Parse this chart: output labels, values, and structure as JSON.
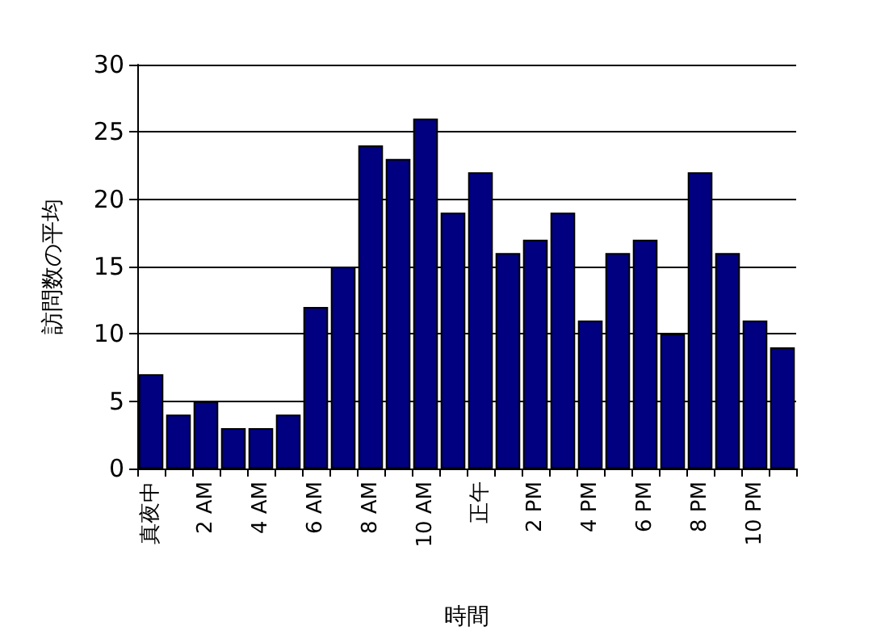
{
  "chart_data": {
    "type": "bar",
    "xlabel": "時間",
    "ylabel": "訪問数の平均",
    "categories": [
      "真夜中",
      null,
      "2 AM",
      null,
      "4 AM",
      null,
      "6 AM",
      null,
      "8 AM",
      null,
      "10 AM",
      null,
      "正午",
      null,
      "2 PM",
      null,
      "4 PM",
      null,
      "6 PM",
      null,
      "8 PM",
      null,
      "10 PM",
      null
    ],
    "values": [
      7,
      4,
      5,
      3,
      3,
      4,
      12,
      15,
      24,
      23,
      26,
      19,
      22,
      16,
      17,
      19,
      11,
      16,
      17,
      10,
      22,
      16,
      11,
      9
    ],
    "color": "#000080",
    "ylim": [
      0,
      30
    ],
    "yticks": [
      0,
      5,
      10,
      15,
      20,
      25,
      30
    ],
    "grid": "y"
  }
}
